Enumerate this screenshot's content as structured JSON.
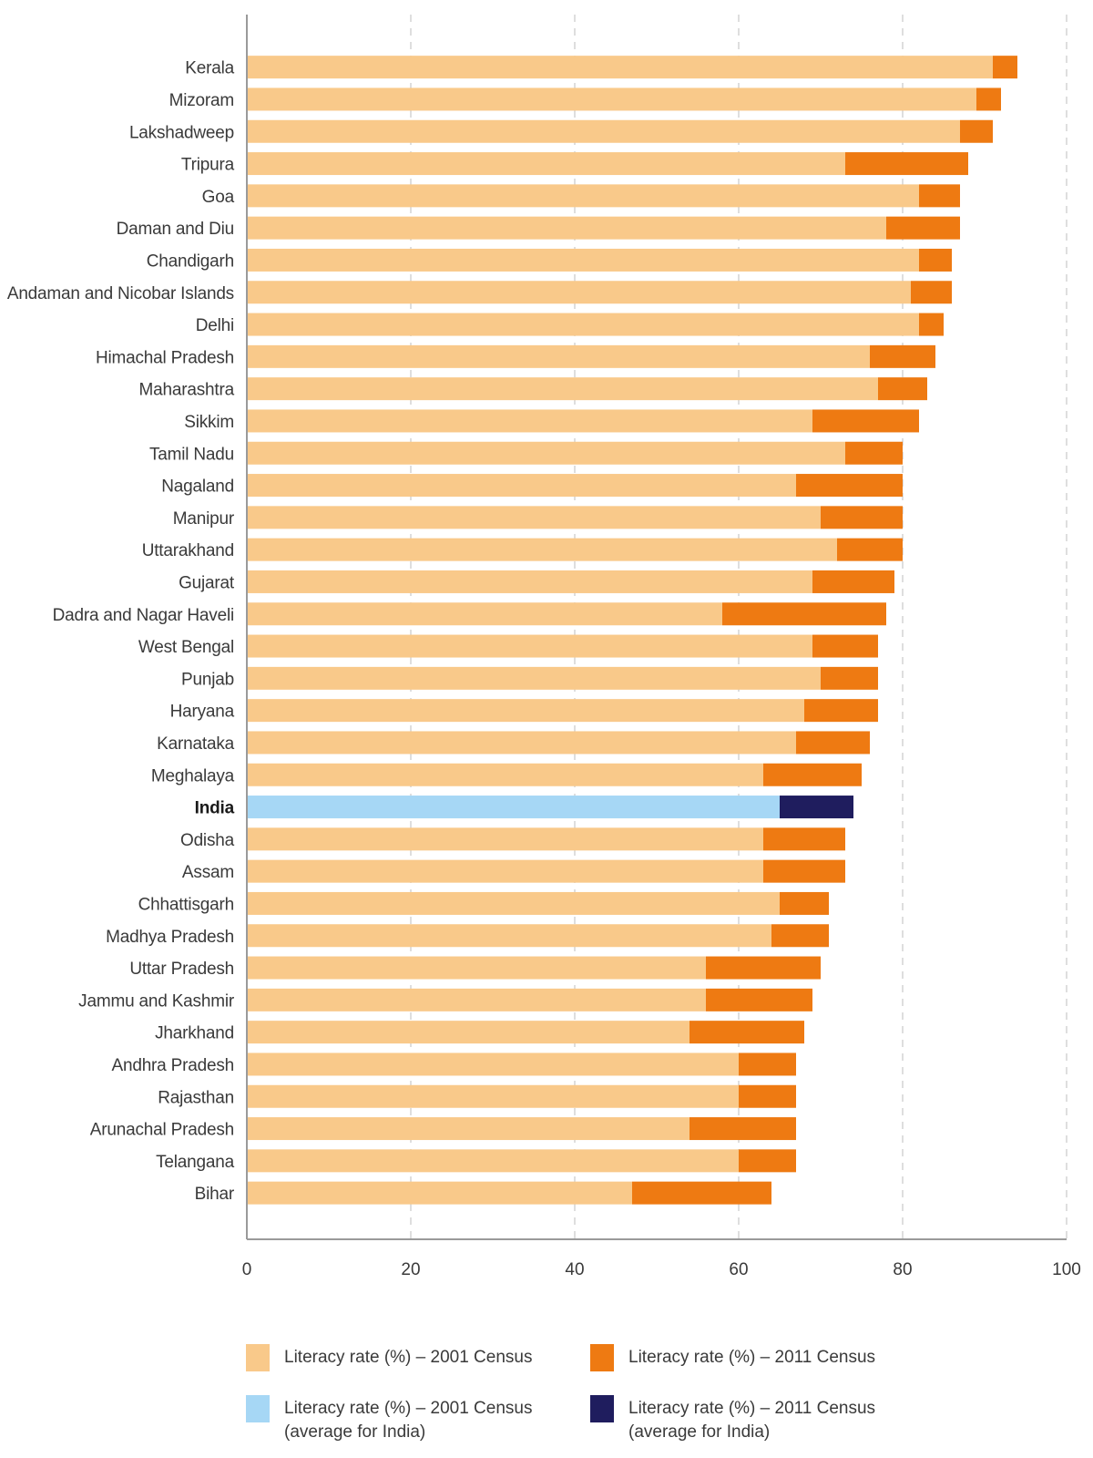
{
  "colors": {
    "state_2001": "#F9C98A",
    "state_2011": "#EE7A12",
    "india_2001": "#A6D7F5",
    "india_2011": "#1F1D5E",
    "axis": "#9a9a9a",
    "grid": "#c8c8c8"
  },
  "legend": {
    "item1": "Literacy rate (%) – 2001 Census",
    "item2": "Literacy rate (%) – 2011 Census",
    "item3_line1": "Literacy rate (%) – 2001 Census",
    "item3_line2": "(average for India)",
    "item4_line1": "Literacy rate (%) – 2011 Census",
    "item4_line2": "(average for India)"
  },
  "chart_data": {
    "type": "bar",
    "orientation": "horizontal",
    "title": "",
    "xlabel": "",
    "ylabel": "",
    "xlim": [
      0,
      100
    ],
    "xticks": [
      0,
      20,
      40,
      60,
      80,
      100
    ],
    "grid": "vertical dashed",
    "legend_position": "bottom",
    "highlight_category": "India",
    "categories": [
      "Kerala",
      "Mizoram",
      "Lakshadweep",
      "Tripura",
      "Goa",
      "Daman and Diu",
      "Chandigarh",
      "Andaman and Nicobar Islands",
      "Delhi",
      "Himachal Pradesh",
      "Maharashtra",
      "Sikkim",
      "Tamil Nadu",
      "Nagaland",
      "Manipur",
      "Uttarakhand",
      "Gujarat",
      "Dadra and Nagar Haveli",
      "West Bengal",
      "Punjab",
      "Haryana",
      "Karnataka",
      "Meghalaya",
      "India",
      "Odisha",
      "Assam",
      "Chhattisgarh",
      "Madhya Pradesh",
      "Uttar Pradesh",
      "Jammu and Kashmir",
      "Jharkhand",
      "Andhra Pradesh",
      "Rajasthan",
      "Arunachal Pradesh",
      "Telangana",
      "Bihar"
    ],
    "series": [
      {
        "name": "Literacy rate (%) – 2001 Census",
        "values": [
          91,
          89,
          87,
          73,
          82,
          78,
          82,
          81,
          82,
          76,
          77,
          69,
          73,
          67,
          70,
          72,
          69,
          58,
          69,
          70,
          68,
          67,
          63,
          65,
          63,
          63,
          65,
          64,
          56,
          56,
          54,
          60,
          60,
          54,
          60,
          47
        ]
      },
      {
        "name": "Literacy rate (%) – 2011 Census",
        "values": [
          94,
          92,
          91,
          88,
          87,
          87,
          86,
          86,
          85,
          84,
          83,
          82,
          80,
          80,
          80,
          80,
          79,
          78,
          77,
          77,
          77,
          76,
          75,
          74,
          73,
          73,
          71,
          71,
          70,
          69,
          68,
          67,
          67,
          67,
          67,
          64
        ]
      }
    ]
  }
}
